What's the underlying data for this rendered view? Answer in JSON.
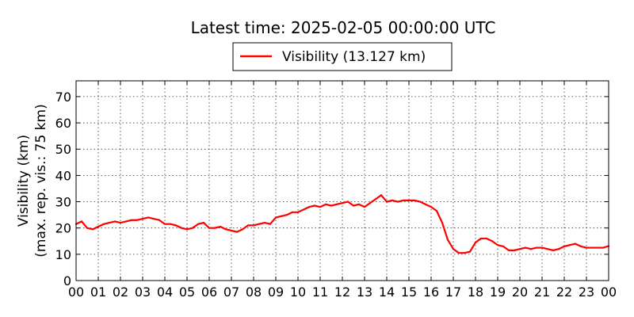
{
  "chart_data": {
    "type": "line",
    "title": "Latest time: 2025-02-05 00:00:00 UTC",
    "xlabel": "",
    "ylabel_line1": "Visibility (km)",
    "ylabel_line2": "(max. rep. vis.: 75 km)",
    "ylim": [
      0,
      76
    ],
    "xlim": [
      0,
      24
    ],
    "grid": true,
    "legend_position": "top-center",
    "x_tick_labels": [
      "00",
      "01",
      "02",
      "03",
      "04",
      "05",
      "06",
      "07",
      "08",
      "09",
      "10",
      "11",
      "12",
      "13",
      "14",
      "15",
      "16",
      "17",
      "18",
      "19",
      "20",
      "21",
      "22",
      "23",
      "00"
    ],
    "y_ticks": [
      0,
      10,
      20,
      30,
      40,
      50,
      60,
      70
    ],
    "series": [
      {
        "name": "Visibility (13.127 km)",
        "color": "#ff0000",
        "x": [
          0.0,
          0.25,
          0.5,
          0.75,
          1.0,
          1.25,
          1.5,
          1.75,
          2.0,
          2.25,
          2.5,
          2.75,
          3.0,
          3.25,
          3.5,
          3.75,
          4.0,
          4.25,
          4.5,
          4.75,
          5.0,
          5.25,
          5.5,
          5.75,
          6.0,
          6.25,
          6.5,
          6.75,
          7.0,
          7.25,
          7.5,
          7.75,
          8.0,
          8.25,
          8.5,
          8.75,
          9.0,
          9.25,
          9.5,
          9.75,
          10.0,
          10.25,
          10.5,
          10.75,
          11.0,
          11.25,
          11.5,
          11.75,
          12.0,
          12.25,
          12.5,
          12.75,
          13.0,
          13.25,
          13.5,
          13.75,
          14.0,
          14.25,
          14.5,
          14.75,
          15.0,
          15.25,
          15.5,
          15.75,
          16.0,
          16.25,
          16.5,
          16.75,
          17.0,
          17.25,
          17.5,
          17.75,
          18.0,
          18.25,
          18.5,
          18.75,
          19.0,
          19.25,
          19.5,
          19.75,
          20.0,
          20.25,
          20.5,
          20.75,
          21.0,
          21.25,
          21.5,
          21.75,
          22.0,
          22.25,
          22.5,
          22.75,
          23.0,
          23.25,
          23.5,
          23.75,
          24.0
        ],
        "values": [
          21.5,
          22.5,
          20.0,
          19.5,
          20.5,
          21.5,
          22.0,
          22.5,
          22.0,
          22.5,
          23.0,
          23.0,
          23.5,
          24.0,
          23.5,
          23.0,
          21.5,
          21.5,
          21.0,
          20.0,
          19.5,
          20.0,
          21.5,
          22.0,
          20.0,
          20.0,
          20.5,
          19.5,
          19.0,
          18.5,
          19.5,
          21.0,
          21.0,
          21.5,
          22.0,
          21.5,
          24.0,
          24.5,
          25.0,
          26.0,
          26.0,
          27.0,
          28.0,
          28.5,
          28.0,
          29.0,
          28.5,
          29.0,
          29.5,
          30.0,
          28.5,
          29.0,
          28.0,
          29.5,
          31.0,
          32.5,
          30.0,
          30.5,
          30.0,
          30.5,
          30.5,
          30.5,
          30.0,
          29.0,
          28.0,
          26.5,
          22.0,
          15.5,
          12.0,
          10.5,
          10.5,
          11.0,
          14.5,
          16.0,
          16.0,
          15.0,
          13.5,
          13.0,
          11.5,
          11.5,
          12.0,
          12.5,
          12.0,
          12.5,
          12.5,
          12.0,
          11.5,
          12.0,
          13.0,
          13.5,
          14.0,
          13.0,
          12.5,
          12.5,
          12.5,
          12.5,
          13.1
        ]
      }
    ]
  }
}
